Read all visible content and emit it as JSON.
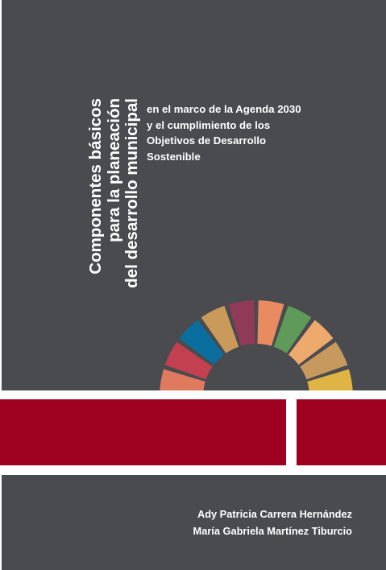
{
  "title_lines": [
    "Componentes básicos",
    "para la planeación",
    "del desarrollo municipal"
  ],
  "subtitle_lines": [
    "en el marco de la Agenda 2030",
    "y el cumplimiento de los",
    "Objetivos de Desarrollo",
    "Sostenible"
  ],
  "authors": [
    "Ady Patricia Carrera Hernández",
    "María Gabriela Martínez Tiburcio"
  ],
  "colors": {
    "background": "#4a4b4f",
    "band": "#9e0120",
    "text": "#ffffff",
    "arc_segments": [
      "#e07a5f",
      "#c2404f",
      "#0a6f9e",
      "#c99a5a",
      "#8f3a57",
      "#e88b61",
      "#5f9a59",
      "#eeaa6c",
      "#c8995d",
      "#dfb344"
    ]
  }
}
